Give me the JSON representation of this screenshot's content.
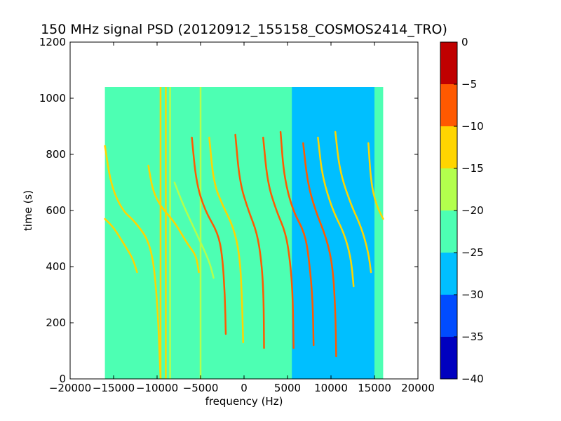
{
  "chart_data": {
    "type": "heatmap",
    "title": "150 MHz signal PSD (20120912_155158_COSMOS2414_TRO)",
    "xlabel": "frequency (Hz)",
    "ylabel": "time (s)",
    "xlim": [
      -20000,
      20000
    ],
    "ylim": [
      0,
      1200
    ],
    "xticks": [
      -20000,
      -15000,
      -10000,
      -5000,
      0,
      5000,
      10000,
      15000,
      20000
    ],
    "xtick_labels": [
      "−20000",
      "−15000",
      "−10000",
      "−5000",
      "0",
      "5000",
      "10000",
      "15000",
      "20000"
    ],
    "yticks": [
      0,
      200,
      400,
      600,
      800,
      1000,
      1200
    ],
    "ytick_labels": [
      "0",
      "200",
      "400",
      "600",
      "800",
      "1000",
      "1200"
    ],
    "data_extent": {
      "x": [
        -16000,
        16000
      ],
      "y": [
        0,
        1040
      ]
    },
    "colorbar": {
      "range": [
        -40,
        0
      ],
      "levels": [
        -40,
        -35,
        -30,
        -25,
        -20,
        -15,
        -10,
        -5,
        0
      ],
      "tick_labels": [
        "−40",
        "−35",
        "−30",
        "−25",
        "−20",
        "−15",
        "−10",
        "−5",
        "0"
      ],
      "colors": [
        "#0000bf",
        "#004cff",
        "#00bfff",
        "#4dffb3",
        "#b3ff4d",
        "#ffd500",
        "#ff5900",
        "#c00000"
      ]
    },
    "background_level_range": [
      -25,
      -20
    ],
    "low_level_region": {
      "x": [
        5500,
        15000
      ],
      "level_range": [
        -30,
        -25
      ]
    },
    "constant_lines": [
      {
        "x": -9600,
        "y": [
          0,
          1040
        ],
        "level_range": [
          -15,
          -10
        ]
      },
      {
        "x": -9000,
        "y": [
          0,
          1040
        ],
        "level_range": [
          -15,
          -10
        ]
      },
      {
        "x": -8500,
        "y": [
          0,
          1040
        ],
        "level_range": [
          -20,
          -15
        ]
      },
      {
        "x": -5000,
        "y": [
          0,
          1040
        ],
        "level_range": [
          -20,
          -15
        ]
      }
    ],
    "doppler_tracks": [
      {
        "level_range": [
          -15,
          -10
        ],
        "points": [
          [
            -16000,
            830
          ],
          [
            -15300,
            690
          ],
          [
            -14000,
            600
          ],
          [
            -12500,
            560
          ],
          [
            -10700,
            480
          ],
          [
            -10000,
            300
          ],
          [
            -9600,
            0
          ]
        ]
      },
      {
        "level_range": [
          -15,
          -10
        ],
        "points": [
          [
            -16000,
            570
          ],
          [
            -15000,
            540
          ],
          [
            -13800,
            480
          ],
          [
            -12800,
            430
          ],
          [
            -12300,
            380
          ]
        ]
      },
      {
        "level_range": [
          -15,
          -10
        ],
        "points": [
          [
            -11000,
            760
          ],
          [
            -10500,
            670
          ],
          [
            -9500,
            610
          ],
          [
            -8000,
            560
          ],
          [
            -6500,
            480
          ],
          [
            -5500,
            440
          ],
          [
            -5200,
            380
          ]
        ]
      },
      {
        "level_range": [
          -20,
          -15
        ],
        "points": [
          [
            -8000,
            700
          ],
          [
            -7000,
            620
          ],
          [
            -5500,
            520
          ],
          [
            -4000,
            420
          ],
          [
            -3500,
            360
          ]
        ]
      },
      {
        "level_range": [
          -10,
          -5
        ],
        "points": [
          [
            -6000,
            860
          ],
          [
            -5500,
            700
          ],
          [
            -4500,
            600
          ],
          [
            -3000,
            520
          ],
          [
            -2500,
            440
          ],
          [
            -2200,
            300
          ],
          [
            -2100,
            160
          ]
        ]
      },
      {
        "level_range": [
          -15,
          -10
        ],
        "points": [
          [
            -4000,
            860
          ],
          [
            -3500,
            700
          ],
          [
            -2500,
            620
          ],
          [
            -1200,
            540
          ],
          [
            -500,
            440
          ],
          [
            -250,
            300
          ],
          [
            -100,
            130
          ]
        ]
      },
      {
        "level_range": [
          -10,
          -5
        ],
        "points": [
          [
            -1000,
            870
          ],
          [
            -500,
            700
          ],
          [
            500,
            600
          ],
          [
            1500,
            520
          ],
          [
            2000,
            420
          ],
          [
            2250,
            300
          ],
          [
            2300,
            110
          ]
        ]
      },
      {
        "level_range": [
          -10,
          -5
        ],
        "points": [
          [
            2200,
            860
          ],
          [
            2700,
            700
          ],
          [
            3700,
            600
          ],
          [
            4800,
            520
          ],
          [
            5300,
            420
          ],
          [
            5600,
            300
          ],
          [
            5700,
            110
          ]
        ]
      },
      {
        "level_range": [
          -10,
          -5
        ],
        "points": [
          [
            4200,
            880
          ],
          [
            4600,
            720
          ],
          [
            5600,
            600
          ],
          [
            7000,
            520
          ],
          [
            7500,
            420
          ],
          [
            7900,
            280
          ],
          [
            8000,
            120
          ]
        ]
      },
      {
        "level_range": [
          -10,
          -5
        ],
        "points": [
          [
            6800,
            840
          ],
          [
            7300,
            700
          ],
          [
            8200,
            600
          ],
          [
            9500,
            500
          ],
          [
            10200,
            400
          ],
          [
            10500,
            250
          ],
          [
            10600,
            80
          ]
        ]
      },
      {
        "level_range": [
          -15,
          -10
        ],
        "points": [
          [
            8500,
            860
          ],
          [
            9000,
            720
          ],
          [
            10200,
            600
          ],
          [
            11500,
            520
          ],
          [
            12300,
            430
          ],
          [
            12600,
            330
          ]
        ]
      },
      {
        "level_range": [
          -15,
          -10
        ],
        "points": [
          [
            10500,
            880
          ],
          [
            11000,
            740
          ],
          [
            12300,
            620
          ],
          [
            13500,
            540
          ],
          [
            14300,
            450
          ],
          [
            14600,
            380
          ]
        ]
      },
      {
        "level_range": [
          -15,
          -10
        ],
        "points": [
          [
            14300,
            840
          ],
          [
            14600,
            700
          ],
          [
            15200,
            620
          ],
          [
            16000,
            570
          ]
        ]
      }
    ]
  }
}
